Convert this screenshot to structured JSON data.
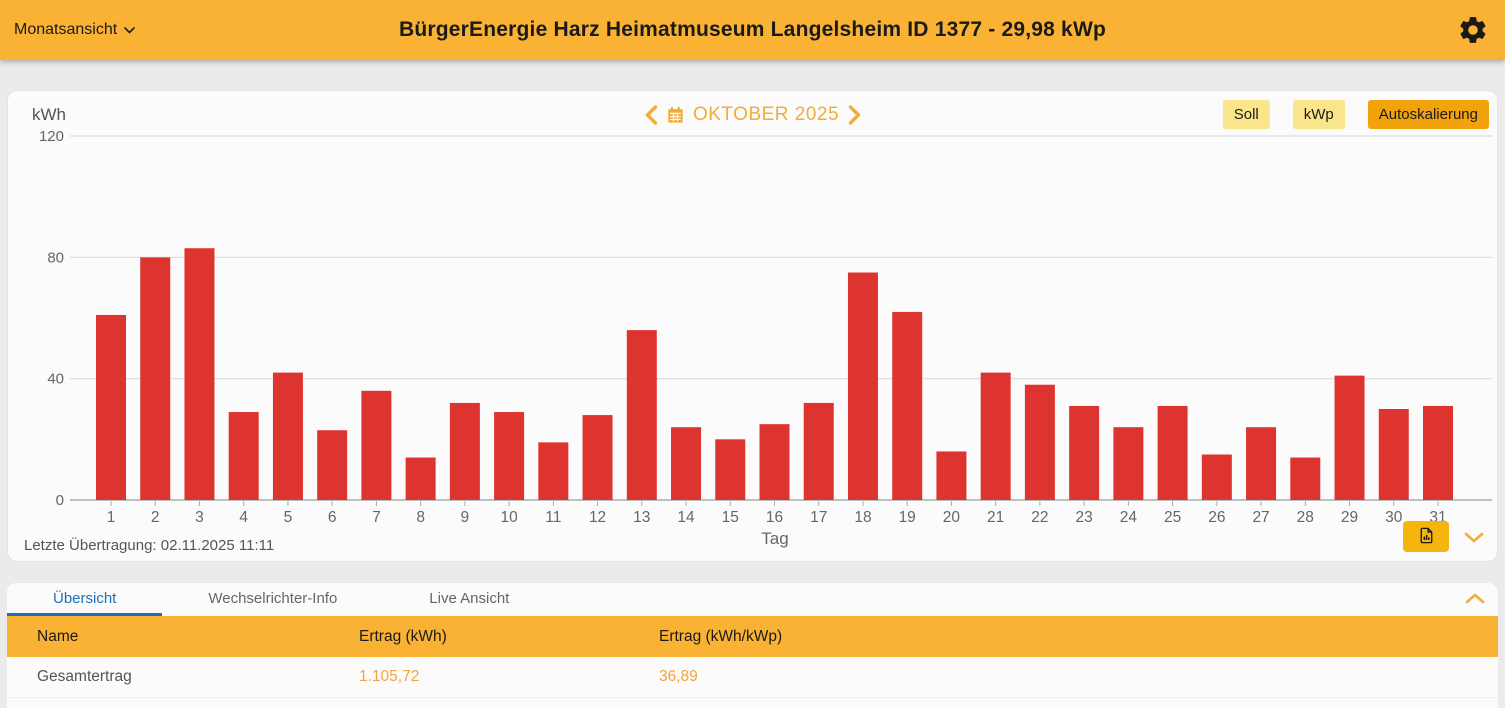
{
  "topbar": {
    "view_selector": "Monatsansicht",
    "title": "BürgerEnergie Harz Heimatmuseum Langelsheim ID 1377 - 29,98 kWp"
  },
  "chart_card": {
    "unit_label": "kWh",
    "month_nav": {
      "label": "OKTOBER 2025"
    },
    "buttons": [
      {
        "label": "Soll",
        "active": false
      },
      {
        "label": "kWp",
        "active": false
      },
      {
        "label": "Autoskalierung",
        "active": true
      }
    ],
    "last_transmission": "Letzte Übertragung: 02.11.2025 11:11"
  },
  "chart_data": {
    "type": "bar",
    "title": "OKTOBER 2025",
    "xlabel": "Tag",
    "ylabel": "kWh",
    "categories": [
      1,
      2,
      3,
      4,
      5,
      6,
      7,
      8,
      9,
      10,
      11,
      12,
      13,
      14,
      15,
      16,
      17,
      18,
      19,
      20,
      21,
      22,
      23,
      24,
      25,
      26,
      27,
      28,
      29,
      30,
      31
    ],
    "values": [
      61,
      80,
      83,
      29,
      42,
      23,
      36,
      14,
      32,
      29,
      19,
      28,
      56,
      24,
      20,
      25,
      32,
      75,
      62,
      16,
      42,
      38,
      31,
      24,
      31,
      15,
      24,
      14,
      41,
      30,
      31
    ],
    "ylim": [
      0,
      120
    ],
    "yticks": [
      0,
      40,
      80,
      120
    ],
    "grid": true,
    "legend": "none",
    "bar_color": "#DE3430"
  },
  "tabs": [
    {
      "label": "Übersicht",
      "active": true
    },
    {
      "label": "Wechselrichter-Info",
      "active": false
    },
    {
      "label": "Live Ansicht",
      "active": false
    }
  ],
  "table": {
    "headers": [
      "Name",
      "Ertrag (kWh)",
      "Ertrag (kWh/kWp)"
    ],
    "rows": [
      {
        "name": "Gesamtertrag",
        "ertrag_kwh": "1.105,72",
        "ertrag_kwh_kwp": "36,89"
      }
    ]
  },
  "icons": {
    "settings": "gear-icon",
    "view_dropdown": "chevron-down-icon",
    "month_prev": "chevron-left-icon",
    "month_next": "chevron-right-icon",
    "calendar": "calendar-icon",
    "export": "export-report-icon",
    "collapse_chart": "chevron-down-icon",
    "collapse_table": "chevron-up-icon"
  },
  "colors": {
    "topbar_yellow": "#F9B233",
    "button_yellow": "#FBE58A",
    "button_active_orange": "#F2A30C",
    "nav_orange": "#F2AC38",
    "bar_red": "#DE3430",
    "tab_blue": "#1C6FBF",
    "value_orange": "#F2A43B"
  }
}
